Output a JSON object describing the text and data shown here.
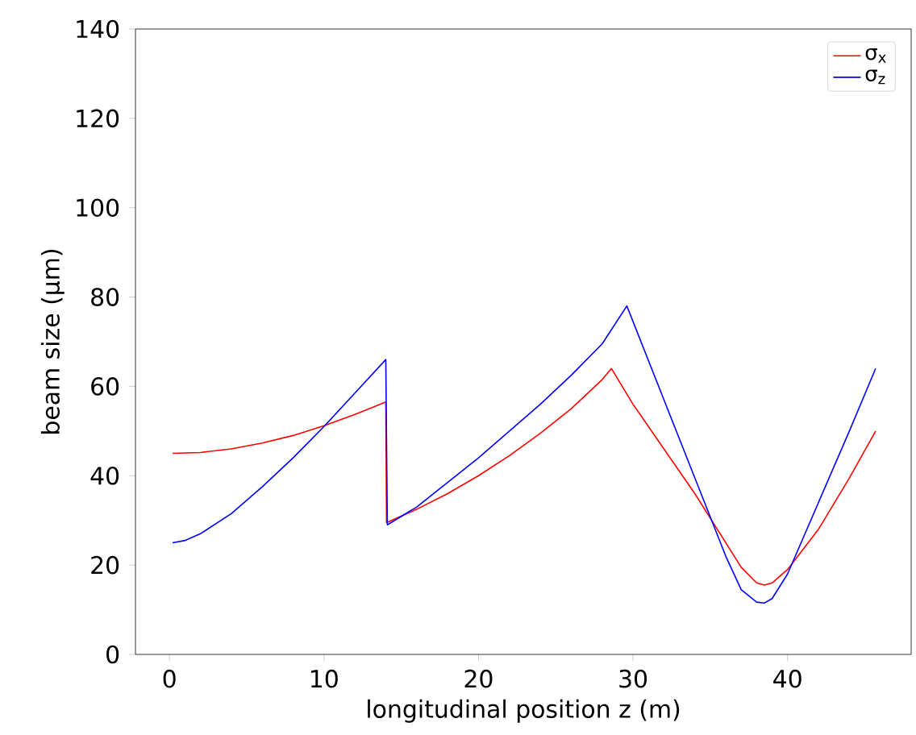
{
  "chart_data": {
    "type": "line",
    "xlabel": "longitudinal position z (m)",
    "ylabel": "beam size (μm)",
    "xlim": [
      -2.2,
      48.0
    ],
    "ylim": [
      0,
      140
    ],
    "xticks": [
      0,
      10,
      20,
      30,
      40
    ],
    "yticks": [
      0,
      20,
      40,
      60,
      80,
      100,
      120,
      140
    ],
    "legend": "top right",
    "series": [
      {
        "name": "σ$_{x}$",
        "color": "#ff0000",
        "x": [
          0.2,
          2,
          4,
          6,
          8,
          10,
          12,
          14,
          14.05,
          16,
          18,
          20,
          22,
          24,
          26,
          28,
          28.6,
          30,
          32,
          34,
          36,
          37,
          38,
          38.5,
          39,
          40,
          42,
          44,
          45.7
        ],
        "values": [
          45,
          45.2,
          46,
          47.3,
          49,
          51.2,
          53.7,
          56.5,
          29.5,
          32.5,
          36,
          40,
          44.5,
          49.5,
          55,
          61.5,
          64,
          56,
          46,
          36,
          25,
          19.5,
          16,
          15.5,
          16,
          19,
          28,
          39.5,
          50
        ]
      },
      {
        "name": "σ$_{z}$",
        "color": "#0000ff",
        "x": [
          0.2,
          1,
          2,
          4,
          6,
          8,
          10,
          12,
          14,
          14.1,
          16,
          18,
          20,
          22,
          24,
          26,
          28,
          29.6,
          32,
          34,
          36,
          37,
          38,
          38.5,
          39,
          40,
          42,
          44,
          45.7
        ],
        "values": [
          25,
          25.5,
          27,
          31.5,
          37.5,
          44,
          51,
          58.5,
          66,
          29,
          33,
          38.5,
          44,
          50,
          56,
          62.5,
          69.5,
          78,
          57,
          39.5,
          22,
          14.5,
          11.7,
          11.5,
          12.5,
          18,
          34,
          50,
          64
        ]
      }
    ]
  }
}
